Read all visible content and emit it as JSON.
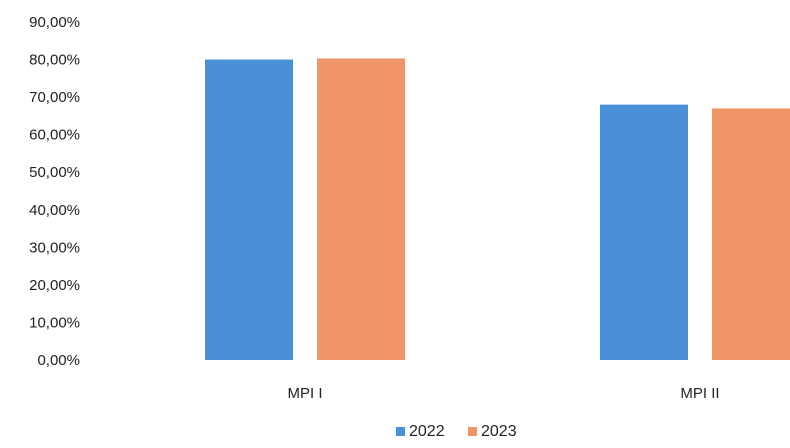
{
  "chart_data": {
    "type": "bar",
    "title": "",
    "xlabel": "",
    "ylabel": "",
    "categories": [
      "MPI I",
      "MPI II"
    ],
    "series": [
      {
        "name": "2022",
        "values": [
          80.0,
          68.0
        ],
        "color": "#4a90d9"
      },
      {
        "name": "2023",
        "values": [
          80.3,
          67.0
        ],
        "color": "#f0956a"
      }
    ],
    "ylim": [
      0,
      90
    ],
    "y_ticks": [
      0,
      10,
      20,
      30,
      40,
      50,
      60,
      70,
      80,
      90
    ],
    "y_tick_labels": [
      "0,00%",
      "10,00%",
      "20,00%",
      "30,00%",
      "40,00%",
      "50,00%",
      "60,00%",
      "70,00%",
      "80,00%",
      "90,00%"
    ],
    "grid": false,
    "legend_position": "bottom-center"
  }
}
